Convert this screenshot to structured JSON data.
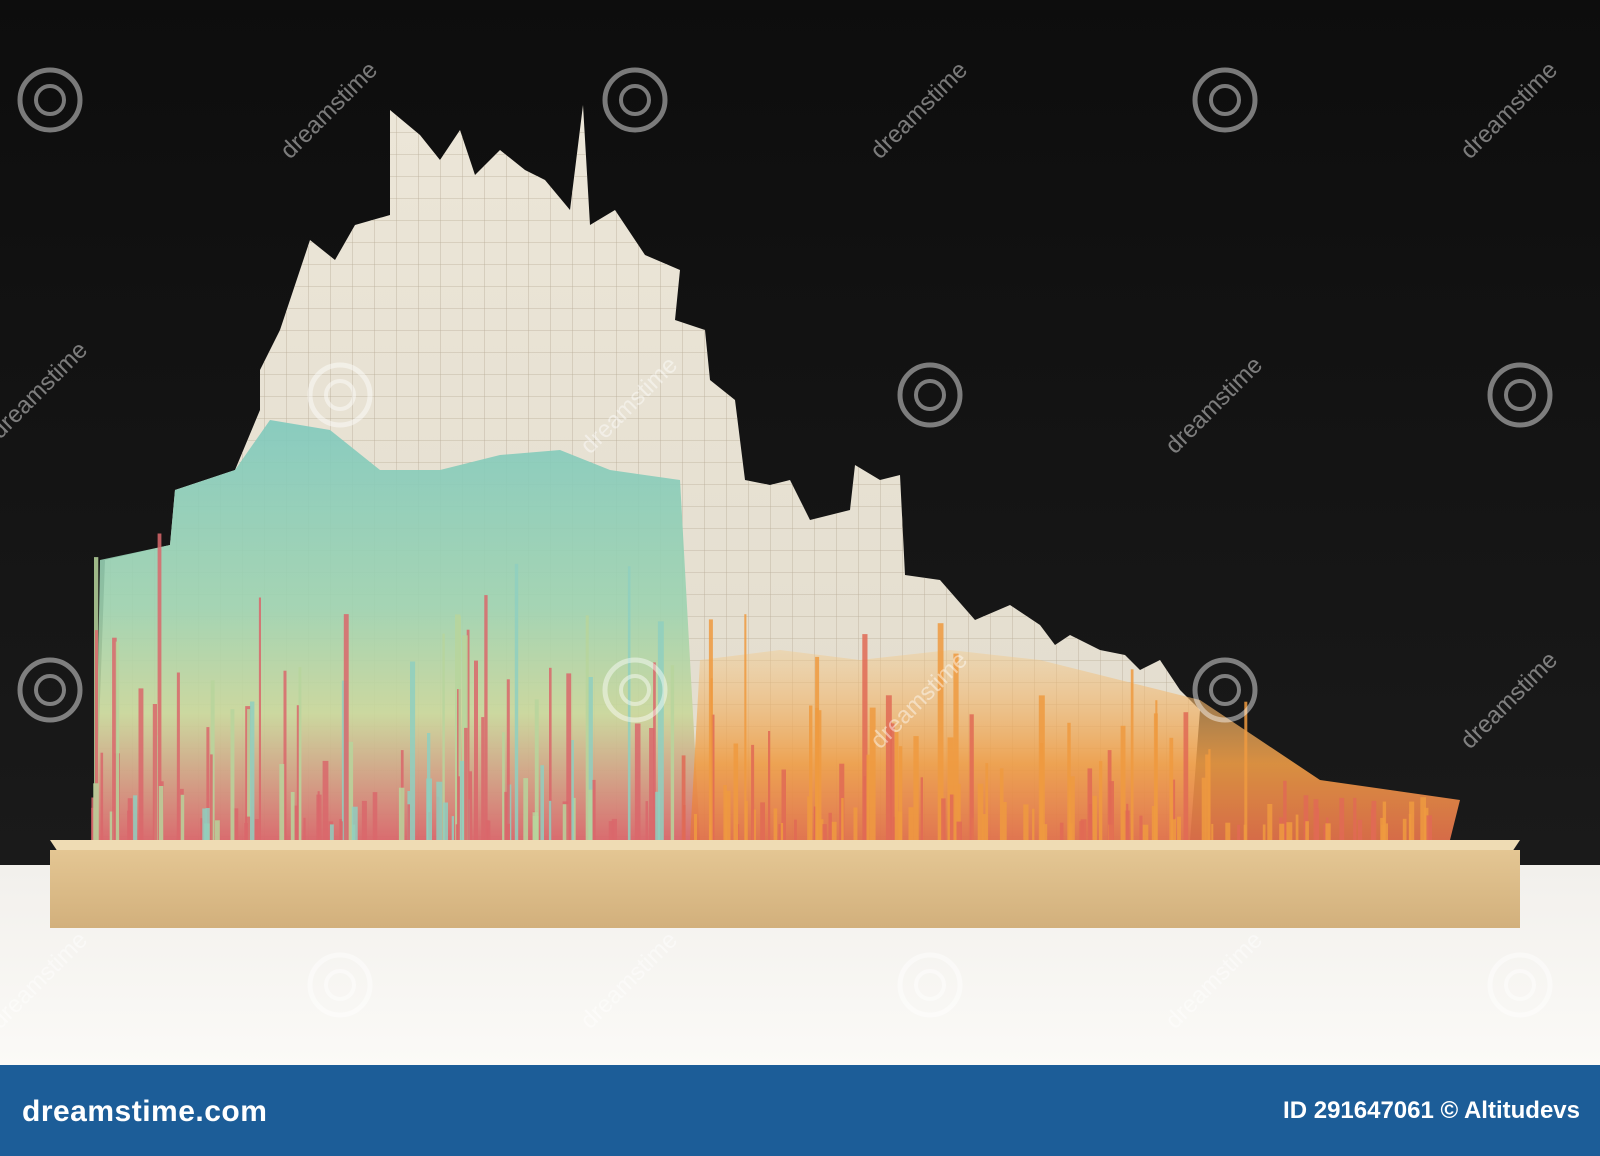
{
  "watermark": {
    "text": "dreamstime"
  },
  "footer": {
    "logo": "dreamstime.com",
    "id_credit": "ID 291647061 © Altitudevs"
  }
}
